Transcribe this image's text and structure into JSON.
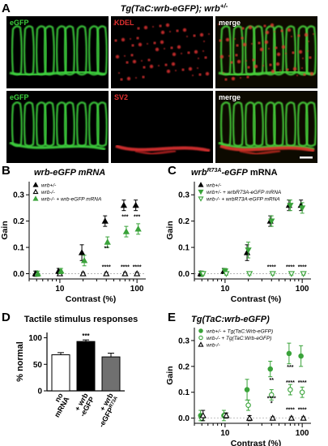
{
  "panel_A": {
    "letter": "A",
    "title": "Tg(TaC:wrb-eGFP); wrb",
    "title_sup": "+/-",
    "images": [
      {
        "label": "eGFP",
        "color": "#3ccf3c"
      },
      {
        "label": "KDEL",
        "color": "#e03030"
      },
      {
        "label": "merge",
        "color": "#ffffff"
      },
      {
        "label": "eGFP",
        "color": "#3ccf3c"
      },
      {
        "label": "SV2",
        "color": "#e03030"
      },
      {
        "label": "merge",
        "color": "#ffffff"
      }
    ]
  },
  "panel_D": {
    "letter": "D",
    "title": "Tactile stimulus responses",
    "ylabel": "% normal",
    "yticks": [
      0,
      50,
      100
    ],
    "ylim": [
      0,
      110
    ],
    "bars": [
      {
        "label_lines": [
          "no",
          "mRNA"
        ],
        "value": 68,
        "err": 4,
        "fill": "#ffffff",
        "sig": ""
      },
      {
        "label_lines": [
          "+ wrb",
          "-eGFP"
        ],
        "value": 93,
        "err": 3,
        "fill": "#000000",
        "sig": "***"
      },
      {
        "label_lines": [
          "+ wrb",
          "-eGFP"
        ],
        "label_sup": "R73A",
        "value": 64,
        "err": 7,
        "fill": "#707070",
        "sig": ""
      }
    ]
  },
  "chart_data": [
    {
      "panel": "B",
      "type": "scatter",
      "title": "wrb-eGFP mRNA",
      "xlabel": "Contrast (%)",
      "ylabel": "Gain",
      "xscale": "log",
      "xlim": [
        4,
        130
      ],
      "ylim": [
        -0.02,
        0.35
      ],
      "xticks": [
        10,
        100
      ],
      "yticks": [
        0.0,
        0.1,
        0.2,
        0.3
      ],
      "legend": [
        "wrb+/-",
        "wrb-/-",
        "wrb-/- + wrb-eGFP mRNA"
      ],
      "legend_position": "top-left",
      "x": [
        5,
        10,
        20,
        40,
        70,
        100
      ],
      "series": [
        {
          "name": "wrb+/-",
          "marker": "triangle-up-filled",
          "color": "#000000",
          "y": [
            0.0,
            0.01,
            0.08,
            0.2,
            0.26,
            0.26
          ],
          "err": [
            0.01,
            0.01,
            0.03,
            0.02,
            0.02,
            0.02
          ]
        },
        {
          "name": "wrb-/-",
          "marker": "triangle-up-open",
          "color": "#000000",
          "y": [
            0.0,
            0.0,
            0.0,
            0.0,
            0.0,
            0.0
          ],
          "err": [
            0.005,
            0.005,
            0.005,
            0.005,
            0.005,
            0.005
          ]
        },
        {
          "name": "wrb-/- + wrb-eGFP mRNA",
          "marker": "triangle-up-filled",
          "color": "#3aa33a",
          "y": [
            0.0,
            0.01,
            0.05,
            0.12,
            0.16,
            0.17
          ],
          "err": [
            0.01,
            0.01,
            0.02,
            0.02,
            0.02,
            0.02
          ]
        }
      ],
      "annotations": [
        {
          "x": 40,
          "y": 0.09,
          "text": "**"
        },
        {
          "x": 70,
          "y": 0.21,
          "text": "***"
        },
        {
          "x": 100,
          "y": 0.21,
          "text": "***"
        },
        {
          "x": 40,
          "y": 0.018,
          "text": "****"
        },
        {
          "x": 70,
          "y": 0.018,
          "text": "****"
        },
        {
          "x": 100,
          "y": 0.018,
          "text": "****"
        }
      ]
    },
    {
      "panel": "C",
      "type": "scatter",
      "title": "wrbR73A-eGFP mRNA",
      "xlabel": "Contrast (%)",
      "ylabel": "Gain",
      "xscale": "log",
      "xlim": [
        4,
        130
      ],
      "ylim": [
        -0.02,
        0.35
      ],
      "xticks": [
        10,
        100
      ],
      "yticks": [
        0.0,
        0.1,
        0.2,
        0.3
      ],
      "legend": [
        "wrb+/-",
        "wrb+/- + wrbR73A-eGFP mRNA",
        "wrb-/- + wrbR73A-eGFP mRNA"
      ],
      "legend_position": "top-left",
      "x": [
        5,
        10,
        20,
        40,
        70,
        100
      ],
      "series": [
        {
          "name": "wrb+/-",
          "marker": "triangle-up-filled",
          "color": "#000000",
          "y": [
            0.0,
            0.01,
            0.08,
            0.2,
            0.26,
            0.26
          ],
          "err": [
            0.01,
            0.01,
            0.03,
            0.02,
            0.02,
            0.02
          ]
        },
        {
          "name": "wrb+/- + wrbR73A-eGFP mRNA",
          "marker": "triangle-down-filled",
          "color": "#3aa33a",
          "y": [
            0.0,
            0.01,
            0.09,
            0.2,
            0.26,
            0.25
          ],
          "err": [
            0.01,
            0.01,
            0.03,
            0.02,
            0.02,
            0.02
          ]
        },
        {
          "name": "wrb-/- + wrbR73A-eGFP mRNA",
          "marker": "triangle-down-open",
          "color": "#3aa33a",
          "y": [
            0.0,
            0.0,
            0.0,
            0.0,
            0.0,
            0.0
          ],
          "err": [
            0.005,
            0.005,
            0.005,
            0.005,
            0.005,
            0.005
          ]
        }
      ],
      "annotations": [
        {
          "x": 40,
          "y": 0.018,
          "text": "****"
        },
        {
          "x": 70,
          "y": 0.018,
          "text": "****"
        },
        {
          "x": 100,
          "y": 0.018,
          "text": "****"
        }
      ]
    },
    {
      "panel": "E",
      "type": "scatter",
      "title": "Tg(TaC:wrb-eGFP)",
      "xlabel": "Contrast (%)",
      "ylabel": "Gain",
      "xscale": "log",
      "xlim": [
        4,
        130
      ],
      "ylim": [
        -0.02,
        0.35
      ],
      "xticks": [
        10,
        100
      ],
      "yticks": [
        0.0,
        0.1,
        0.2,
        0.3
      ],
      "legend": [
        "wrb+/- + Tg(TaC:Wrb-eGFP)",
        "wrb-/- + Tg(TaC:Wrb-eGFP)",
        "wrb-/-"
      ],
      "legend_position": "top-left",
      "x": [
        5,
        10,
        20,
        40,
        70,
        100
      ],
      "series": [
        {
          "name": "wrb+/- + Tg(TaC:Wrb-eGFP)",
          "marker": "circle-filled",
          "color": "#3aa33a",
          "y": [
            0.01,
            0.01,
            0.11,
            0.19,
            0.25,
            0.24
          ],
          "err": [
            0.02,
            0.02,
            0.04,
            0.03,
            0.04,
            0.04
          ]
        },
        {
          "name": "wrb-/- + Tg(TaC:Wrb-eGFP)",
          "marker": "circle-open",
          "color": "#3aa33a",
          "y": [
            0.0,
            0.01,
            0.05,
            0.09,
            0.11,
            0.1
          ],
          "err": [
            0.01,
            0.01,
            0.02,
            0.02,
            0.02,
            0.02
          ]
        },
        {
          "name": "wrb-/-",
          "marker": "triangle-up-open",
          "color": "#000000",
          "y": [
            0.01,
            0.01,
            0.0,
            0.0,
            0.0,
            0.0
          ],
          "err": [
            0.02,
            0.01,
            0.01,
            0.005,
            0.005,
            0.005
          ]
        }
      ],
      "annotations": [
        {
          "x": 40,
          "y": 0.14,
          "text": "**"
        },
        {
          "x": 70,
          "y": 0.19,
          "text": "***"
        },
        {
          "x": 40,
          "y": 0.07,
          "text": "****"
        },
        {
          "x": 70,
          "y": 0.13,
          "text": "****"
        },
        {
          "x": 100,
          "y": 0.13,
          "text": "****"
        },
        {
          "x": 40,
          "y": 0.05,
          "text": "*"
        },
        {
          "x": 70,
          "y": 0.025,
          "text": "****"
        },
        {
          "x": 100,
          "y": 0.025,
          "text": "****"
        }
      ]
    }
  ]
}
